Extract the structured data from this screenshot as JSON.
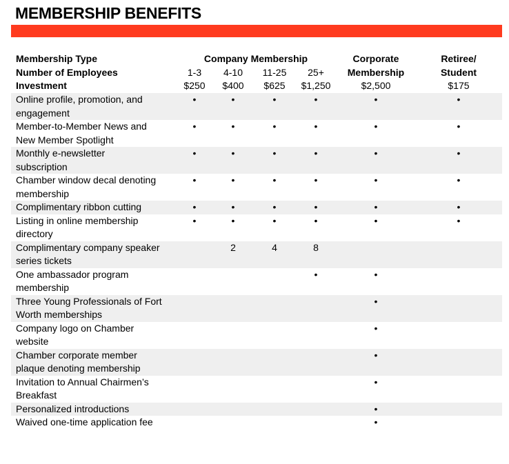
{
  "title": "MEMBERSHIP BENEFITS",
  "colors": {
    "accent": "#ff3b1f",
    "shade": "#efefef"
  },
  "header": {
    "membership_type": "Membership Type",
    "number_of_employees": "Number of Employees",
    "investment": "Investment",
    "company_membership": "Company Membership",
    "corporate_line1": "Corporate",
    "corporate_line2": "Membership",
    "retiree_line1": "Retiree/",
    "retiree_line2": "Student",
    "tiers": [
      "1-3",
      "4-10",
      "11-25",
      "25+"
    ],
    "prices": [
      "$250",
      "$400",
      "$625",
      "$1,250",
      "$2,500",
      "$175"
    ]
  },
  "bullet": "•",
  "rows": [
    {
      "label": [
        "Online profile, promotion, and",
        "engagement"
      ],
      "cells": [
        "•",
        "•",
        "•",
        "•",
        "•",
        "•"
      ],
      "shade": true
    },
    {
      "label": [
        "Member-to-Member News and",
        "New Member Spotlight"
      ],
      "cells": [
        "•",
        "•",
        "•",
        "•",
        "•",
        "•"
      ],
      "shade": false
    },
    {
      "label": [
        "Monthly e-newsletter",
        "subscription"
      ],
      "cells": [
        "•",
        "•",
        "•",
        "•",
        "•",
        "•"
      ],
      "shade": true
    },
    {
      "label": [
        "Chamber window decal denoting",
        "membership"
      ],
      "cells": [
        "•",
        "•",
        "•",
        "•",
        "•",
        "•"
      ],
      "shade": false
    },
    {
      "label": [
        "Complimentary ribbon cutting"
      ],
      "cells": [
        "•",
        "•",
        "•",
        "•",
        "•",
        "•"
      ],
      "shade": true
    },
    {
      "label": [
        "Listing in online membership",
        "directory"
      ],
      "cells": [
        "•",
        "•",
        "•",
        "•",
        "•",
        "•"
      ],
      "shade": false
    },
    {
      "label": [
        "Complimentary company speaker",
        "series tickets"
      ],
      "cells": [
        "",
        "2",
        "4",
        "8",
        "",
        ""
      ],
      "shade": true
    },
    {
      "label": [
        "One ambassador program",
        "membership"
      ],
      "cells": [
        "",
        "",
        "",
        "•",
        "•",
        ""
      ],
      "shade": false
    },
    {
      "label": [
        "Three Young Professionals of Fort",
        "Worth memberships"
      ],
      "cells": [
        "",
        "",
        "",
        "",
        "•",
        ""
      ],
      "shade": true
    },
    {
      "label": [
        "Company logo on Chamber",
        "website"
      ],
      "cells": [
        "",
        "",
        "",
        "",
        "•",
        ""
      ],
      "shade": false
    },
    {
      "label": [
        "Chamber corporate member",
        "plaque denoting membership"
      ],
      "cells": [
        "",
        "",
        "",
        "",
        "•",
        ""
      ],
      "shade": true
    },
    {
      "label": [
        "Invitation to Annual Chairmen’s",
        "Breakfast"
      ],
      "cells": [
        "",
        "",
        "",
        "",
        "•",
        ""
      ],
      "shade": false
    },
    {
      "label": [
        "Personalized introductions"
      ],
      "cells": [
        "",
        "",
        "",
        "",
        "•",
        ""
      ],
      "shade": true
    },
    {
      "label": [
        "Waived one-time application fee"
      ],
      "cells": [
        "",
        "",
        "",
        "",
        "•",
        ""
      ],
      "shade": false
    }
  ]
}
